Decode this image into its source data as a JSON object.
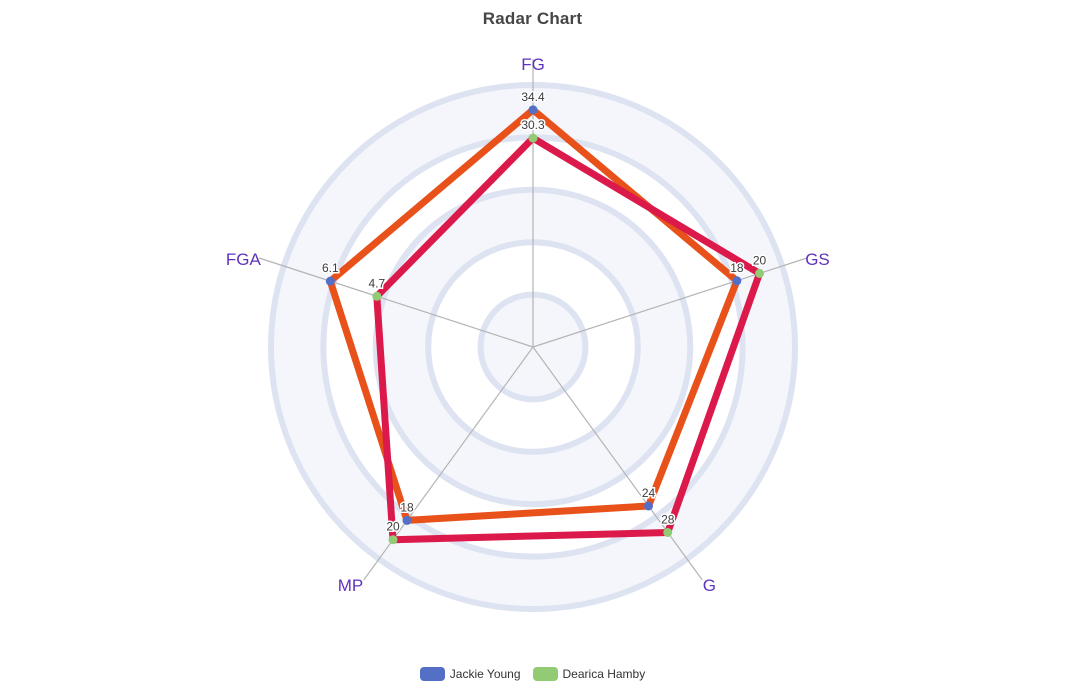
{
  "title": "Radar Chart",
  "chart_data": {
    "type": "radar",
    "shape": "circle",
    "split_number": 5,
    "grid": true,
    "legend_position": "bottom",
    "indicators": [
      {
        "name": "FG",
        "max": 38
      },
      {
        "name": "GS",
        "max": 22
      },
      {
        "name": "G",
        "max": 32
      },
      {
        "name": "MP",
        "max": 22
      },
      {
        "name": "FGA",
        "max": 7.5
      }
    ],
    "series": [
      {
        "name": "Jackie Young",
        "values": [
          34.4,
          18,
          24,
          18,
          6.1
        ],
        "line_color": "#E8511A",
        "marker_color": "#5470C6"
      },
      {
        "name": "Dearica Hamby",
        "values": [
          30.3,
          20,
          28,
          20,
          4.7
        ],
        "line_color": "#DB1A4B",
        "marker_color": "#91CC75"
      }
    ],
    "legend": {
      "items": [
        {
          "label": "Jackie Young",
          "color": "#5470C6"
        },
        {
          "label": "Dearica Hamby",
          "color": "#91CC75"
        }
      ]
    },
    "styles": {
      "title_color": "#464646",
      "axis_name_color": "#5E32BE",
      "axis_line_color": "#B4B4B4",
      "split_line_color": "#DEE3F2",
      "split_area_colors": [
        "#F4F6FB",
        "#FFFFFF"
      ],
      "value_label_color": "#3C3C3C",
      "legend_text_color": "#333333"
    }
  }
}
